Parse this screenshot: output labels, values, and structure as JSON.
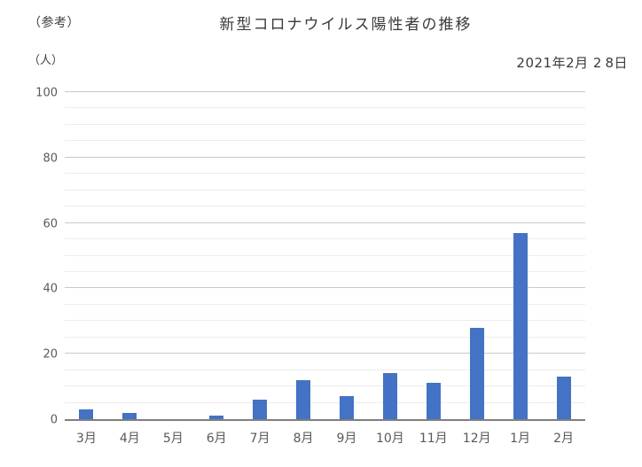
{
  "page": {
    "ref_label": "（参考）",
    "unit_label": "（人）",
    "date_label": "2021年2月 2 8日"
  },
  "chart_data": {
    "type": "bar",
    "title": "新型コロナウイルス陽性者の推移",
    "categories": [
      "3月",
      "4月",
      "5月",
      "6月",
      "7月",
      "8月",
      "9月",
      "10月",
      "11月",
      "12月",
      "1月",
      "2月"
    ],
    "values": [
      3,
      2,
      0,
      1,
      6,
      12,
      7,
      14,
      11,
      28,
      57,
      13
    ],
    "xlabel": "",
    "ylabel": "（人）",
    "ylim": [
      0,
      100
    ],
    "y_major_step": 20,
    "y_minor_step": 5,
    "y_tick_labels": [
      "0",
      "20",
      "40",
      "60",
      "80",
      "100"
    ],
    "grid": true,
    "legend": "none",
    "bar_color": "#4472c4",
    "axis_line_color": "#7f7f7f",
    "major_grid_color": "#c9c9c9",
    "minor_grid_color": "#ececec",
    "tick_label_color": "#595959"
  }
}
